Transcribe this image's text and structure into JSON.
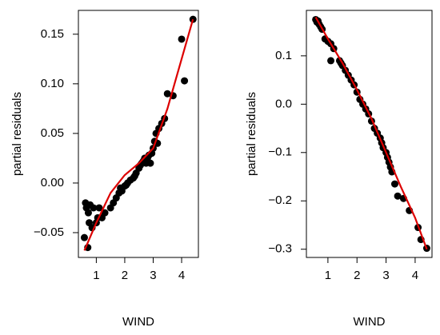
{
  "chart_data": [
    {
      "type": "scatter",
      "xlabel": "WIND",
      "ylabel": "partial residuals",
      "xlim": [
        0.37,
        4.59
      ],
      "ylim": [
        -0.075,
        0.174
      ],
      "xticks": [
        1,
        2,
        3,
        4
      ],
      "yticks": [
        {
          "value": -0.05,
          "label": "−0.05"
        },
        {
          "value": 0,
          "label": "0.00"
        },
        0.05,
        {
          "value": 0.1,
          "label": "0.10"
        },
        0.15
      ],
      "color": "#000000",
      "x": [
        0.58,
        0.62,
        0.65,
        0.7,
        0.72,
        0.75,
        0.78,
        0.85,
        0.9,
        1.0,
        1.05,
        1.1,
        1.2,
        1.3,
        1.5,
        1.6,
        1.7,
        1.8,
        1.85,
        1.9,
        2.0,
        2.05,
        2.1,
        2.2,
        2.3,
        2.35,
        2.4,
        2.5,
        2.55,
        2.6,
        2.65,
        2.7,
        2.75,
        2.8,
        2.85,
        2.9,
        2.95,
        3.0,
        3.05,
        3.1,
        3.15,
        3.2,
        3.3,
        3.4,
        3.5,
        3.7,
        4.0,
        4.1,
        4.4
      ],
      "y": [
        -0.055,
        -0.02,
        -0.025,
        -0.065,
        -0.03,
        -0.04,
        -0.022,
        -0.045,
        -0.025,
        -0.04,
        -0.035,
        -0.025,
        -0.035,
        -0.03,
        -0.025,
        -0.02,
        -0.015,
        -0.01,
        -0.005,
        -0.008,
        -0.003,
        -0.002,
        0.0,
        0.003,
        0.005,
        0.007,
        0.01,
        0.015,
        0.018,
        0.02,
        0.022,
        0.025,
        0.02,
        0.025,
        0.028,
        0.02,
        0.03,
        0.035,
        0.042,
        0.05,
        0.04,
        0.055,
        0.06,
        0.065,
        0.09,
        0.088,
        0.145,
        0.103,
        0.165
      ],
      "curve": {
        "color": "#dd0000",
        "x": [
          0.58,
          1.0,
          1.5,
          2.0,
          2.5,
          3.0,
          3.5,
          4.0,
          4.4
        ],
        "y": [
          -0.068,
          -0.04,
          -0.01,
          0.008,
          0.02,
          0.035,
          0.075,
          0.125,
          0.165
        ]
      }
    },
    {
      "type": "scatter",
      "xlabel": "WIND",
      "ylabel": "partial residuals",
      "xlim": [
        0.26,
        4.58
      ],
      "ylim": [
        -0.317,
        0.194
      ],
      "xticks": [
        1,
        2,
        3,
        4
      ],
      "yticks": [
        {
          "value": -0.3,
          "label": "−0.3"
        },
        {
          "value": -0.2,
          "label": "−0.2"
        },
        {
          "value": -0.1,
          "label": "−0.1"
        },
        {
          "value": 0,
          "label": "0.0"
        },
        0.1
      ],
      "color": "#000000",
      "x": [
        0.58,
        0.62,
        0.66,
        0.7,
        0.75,
        0.8,
        0.9,
        1.0,
        1.1,
        1.1,
        1.2,
        1.4,
        1.45,
        1.5,
        1.6,
        1.7,
        1.8,
        1.9,
        2.0,
        2.1,
        2.2,
        2.3,
        2.4,
        2.5,
        2.6,
        2.7,
        2.8,
        2.85,
        2.9,
        3.0,
        3.05,
        3.1,
        3.15,
        3.2,
        3.3,
        3.4,
        3.6,
        3.8,
        4.1,
        4.2,
        4.4
      ],
      "y": [
        0.175,
        0.17,
        0.172,
        0.165,
        0.16,
        0.155,
        0.135,
        0.13,
        0.09,
        0.125,
        0.115,
        0.09,
        0.085,
        0.08,
        0.07,
        0.06,
        0.05,
        0.04,
        0.025,
        0.01,
        0.0,
        -0.01,
        -0.02,
        -0.035,
        -0.05,
        -0.06,
        -0.07,
        -0.08,
        -0.09,
        -0.1,
        -0.11,
        -0.12,
        -0.13,
        -0.14,
        -0.165,
        -0.19,
        -0.195,
        -0.22,
        -0.255,
        -0.28,
        -0.298
      ],
      "curve": {
        "color": "#dd0000",
        "x": [
          0.58,
          1.0,
          1.5,
          2.0,
          2.5,
          3.0,
          3.5,
          4.0,
          4.4
        ],
        "y": [
          0.18,
          0.135,
          0.085,
          0.03,
          -0.03,
          -0.1,
          -0.17,
          -0.235,
          -0.3
        ]
      }
    }
  ]
}
